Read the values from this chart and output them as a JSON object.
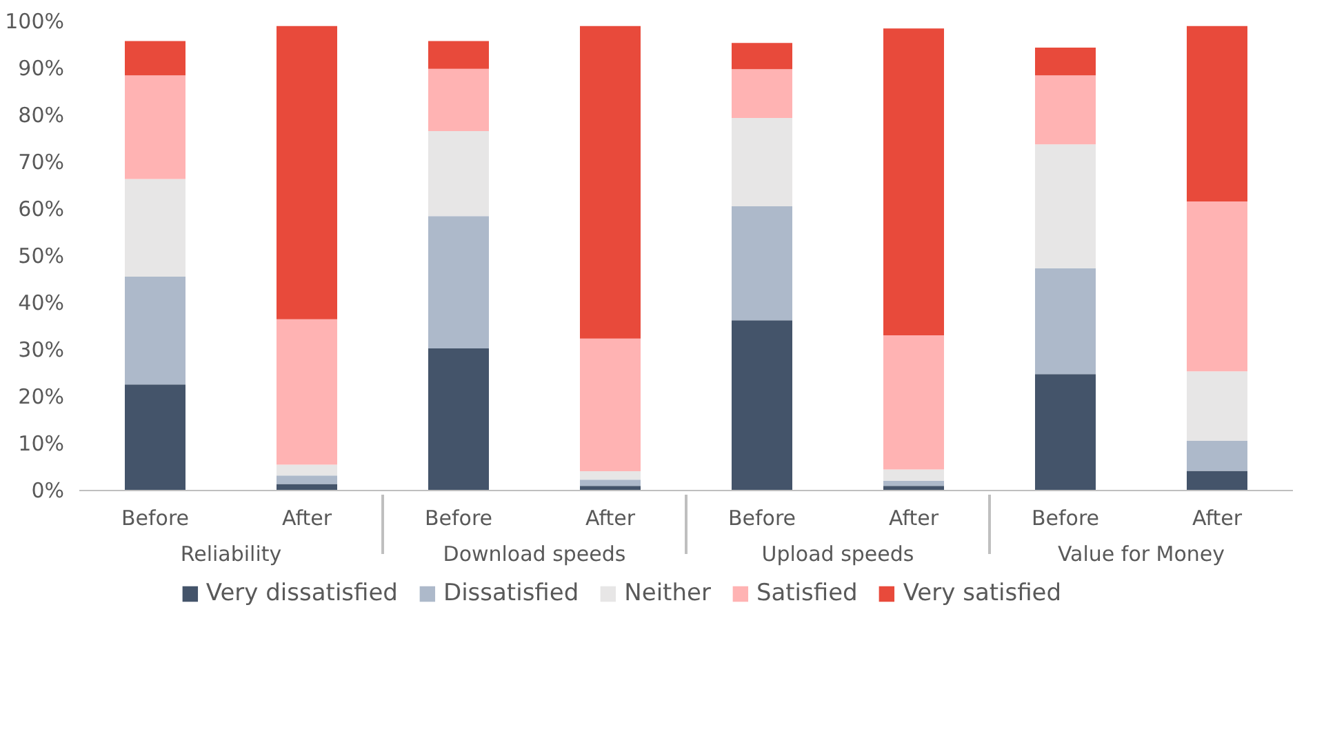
{
  "chart_data": {
    "type": "bar",
    "stacked": true,
    "categories": [
      "Before",
      "After",
      "Before",
      "After",
      "Before",
      "After",
      "Before",
      "After"
    ],
    "annotations": [
      "Reliability",
      "Download speeds",
      "Upload speeds",
      "Value for Money"
    ],
    "series": [
      {
        "name": "Very dissatisfied",
        "color": "#44546a",
        "values": [
          22.6,
          1.4,
          30.3,
          1.0,
          36.3,
          1.0,
          24.8,
          4.2
        ]
      },
      {
        "name": "Dissatisfied",
        "color": "#adb9ca",
        "values": [
          23.0,
          1.8,
          28.2,
          1.3,
          24.3,
          1.1,
          22.6,
          6.4
        ]
      },
      {
        "name": "Neither",
        "color": "#e7e6e6",
        "values": [
          20.8,
          2.3,
          18.1,
          1.8,
          18.8,
          2.4,
          26.4,
          14.8
        ]
      },
      {
        "name": "Satisfied",
        "color": "#ffb3b3",
        "values": [
          22.1,
          31.0,
          13.3,
          28.3,
          10.4,
          28.6,
          14.7,
          36.2
        ]
      },
      {
        "name": "Very satisfied",
        "color": "#e84a3b",
        "values": [
          7.3,
          62.5,
          5.9,
          66.6,
          5.6,
          65.4,
          5.9,
          37.4
        ]
      }
    ],
    "ylim": [
      0,
      100
    ],
    "yticks": [
      {
        "value": 0,
        "label": "0%"
      },
      {
        "value": 10,
        "label": "10%"
      },
      {
        "value": 20,
        "label": "20%"
      },
      {
        "value": 30,
        "label": "30%"
      },
      {
        "value": 40,
        "label": "40%"
      },
      {
        "value": 50,
        "label": "50%"
      },
      {
        "value": 60,
        "label": "60%"
      },
      {
        "value": 70,
        "label": "70%"
      },
      {
        "value": 80,
        "label": "80%"
      },
      {
        "value": 90,
        "label": "90%"
      },
      {
        "value": 100,
        "label": "100%"
      }
    ],
    "grid": false,
    "legend": "bottom"
  }
}
